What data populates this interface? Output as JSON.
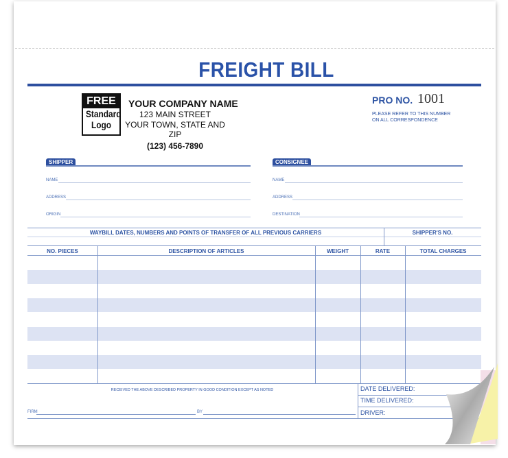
{
  "title": "FREIGHT BILL",
  "logo": {
    "line1": "FREE",
    "line2": "Standard",
    "line3": "Logo"
  },
  "company": {
    "name": "YOUR COMPANY NAME",
    "street": "123 MAIN STREET",
    "city": "YOUR TOWN, STATE AND ZIP",
    "phone": "(123) 456-7890"
  },
  "pro": {
    "label": "PRO NO.",
    "number": "1001",
    "note1": "PLEASE REFER TO THIS NUMBER",
    "note2": "ON ALL CORRESPONDENCE"
  },
  "shipper": {
    "heading": "SHIPPER",
    "fields": [
      "NAME",
      "ADDRESS",
      "ORIGIN"
    ]
  },
  "consignee": {
    "heading": "CONSIGNEE",
    "fields": [
      "NAME",
      "ADDRESS",
      "DESTINATION"
    ]
  },
  "waybill": {
    "label": "WAYBILL DATES, NUMBERS AND POINTS OF TRANSFER OF ALL PREVIOUS CARRIERS",
    "shippers_no": "SHIPPER'S NO."
  },
  "columns": [
    "NO. PIECES",
    "DESCRIPTION OF ARTICLES",
    "WEIGHT",
    "RATE",
    "TOTAL CHARGES"
  ],
  "footer": {
    "received": "RECEIVED THE ABOVE DESCRIBED PROPERTY IN GOOD CONDITION EXCEPT AS NOTED",
    "firm": "FIRM",
    "by": "BY",
    "date_delivered": "DATE DELIVERED:",
    "time_delivered": "TIME DELIVERED:",
    "driver": "DRIVER:"
  },
  "colors": {
    "accent": "#2d4f9f",
    "stripe": "#dde3f3",
    "copy_yellow": "#f7f2a8",
    "copy_pink": "#f4dfe8"
  }
}
